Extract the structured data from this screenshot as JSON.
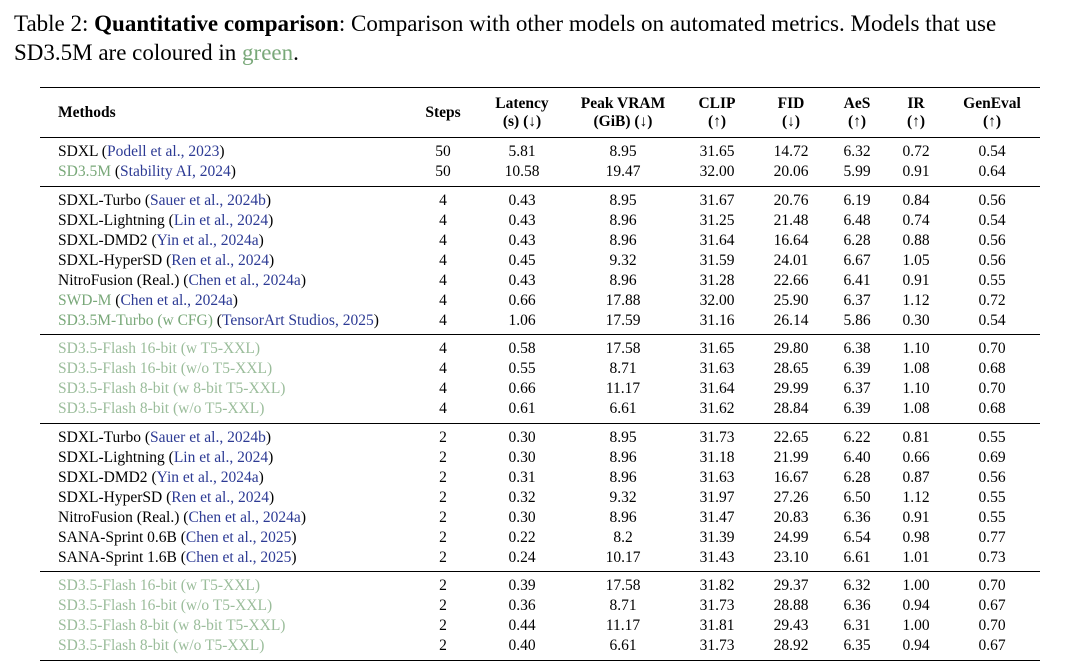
{
  "caption": {
    "label": "Table 2: ",
    "bold_title": "Quantitative comparison",
    "body": ": Comparison with other models on automated metrics. Models that use SD3.5M are coloured in ",
    "green_word": "green",
    "tail": "."
  },
  "colors": {
    "black": "#000000",
    "green": "#79a879",
    "lightgreen": "#9bbd9b",
    "citation": "#2c3a94"
  },
  "table": {
    "columns": [
      {
        "key": "method",
        "l1": "Methods",
        "l2": ""
      },
      {
        "key": "steps",
        "l1": "Steps",
        "l2": ""
      },
      {
        "key": "latency",
        "l1": "Latency",
        "l2": "(s) (↓)"
      },
      {
        "key": "vram",
        "l1": "Peak VRAM",
        "l2": "(GiB) (↓)"
      },
      {
        "key": "clip",
        "l1": "CLIP",
        "l2": "(↑)"
      },
      {
        "key": "fid",
        "l1": "FID",
        "l2": "(↓)"
      },
      {
        "key": "aes",
        "l1": "AeS",
        "l2": "(↑)"
      },
      {
        "key": "ir",
        "l1": "IR",
        "l2": "(↑)"
      },
      {
        "key": "geneval",
        "l1": "GenEval",
        "l2": "(↑)"
      }
    ],
    "groups": [
      {
        "rows": [
          {
            "method": "SDXL",
            "cite": "Podell et al., 2023",
            "tone": "black",
            "cells": [
              "50",
              "5.81",
              "8.95",
              "31.65",
              "14.72",
              "6.32",
              "0.72",
              "0.54"
            ]
          },
          {
            "method": "SD3.5M",
            "cite": "Stability AI, 2024",
            "tone": "green",
            "cells": [
              "50",
              "10.58",
              "19.47",
              "32.00",
              "20.06",
              "5.99",
              "0.91",
              "0.64"
            ]
          }
        ]
      },
      {
        "rows": [
          {
            "method": "SDXL-Turbo",
            "cite": "Sauer et al., 2024b",
            "tone": "black",
            "cells": [
              "4",
              "0.43",
              "8.95",
              "31.67",
              "20.76",
              "6.19",
              "0.84",
              "0.56"
            ]
          },
          {
            "method": "SDXL-Lightning",
            "cite": "Lin et al., 2024",
            "tone": "black",
            "cells": [
              "4",
              "0.43",
              "8.96",
              "31.25",
              "21.48",
              "6.48",
              "0.74",
              "0.54"
            ]
          },
          {
            "method": "SDXL-DMD2",
            "cite": "Yin et al., 2024a",
            "tone": "black",
            "cells": [
              "4",
              "0.43",
              "8.96",
              "31.64",
              "16.64",
              "6.28",
              "0.88",
              "0.56"
            ]
          },
          {
            "method": "SDXL-HyperSD",
            "cite": "Ren et al., 2024",
            "tone": "black",
            "cells": [
              "4",
              "0.45",
              "9.32",
              "31.59",
              "24.01",
              "6.67",
              "1.05",
              "0.56"
            ]
          },
          {
            "method": "NitroFusion (Real.)",
            "cite": "Chen et al., 2024a",
            "tone": "black",
            "cells": [
              "4",
              "0.43",
              "8.96",
              "31.28",
              "22.66",
              "6.41",
              "0.91",
              "0.55"
            ]
          },
          {
            "method": "SWD-M",
            "cite": "Chen et al., 2024a",
            "tone": "green",
            "cells": [
              "4",
              "0.66",
              "17.88",
              "32.00",
              "25.90",
              "6.37",
              "1.12",
              "0.72"
            ]
          },
          {
            "method": "SD3.5M-Turbo (w CFG)",
            "cite": "TensorArt Studios, 2025",
            "tone": "green",
            "cells": [
              "4",
              "1.06",
              "17.59",
              "31.16",
              "26.14",
              "5.86",
              "0.30",
              "0.54"
            ]
          }
        ]
      },
      {
        "rows": [
          {
            "method": "SD3.5-Flash 16-bit (w T5-XXL)",
            "tone": "lightgreen",
            "cells": [
              "4",
              "0.58",
              "17.58",
              "31.65",
              "29.80",
              "6.38",
              "1.10",
              "0.70"
            ]
          },
          {
            "method": "SD3.5-Flash 16-bit (w/o T5-XXL)",
            "tone": "lightgreen",
            "cells": [
              "4",
              "0.55",
              "8.71",
              "31.63",
              "28.65",
              "6.39",
              "1.08",
              "0.68"
            ]
          },
          {
            "method": "SD3.5-Flash 8-bit (w 8-bit T5-XXL)",
            "tone": "lightgreen",
            "cells": [
              "4",
              "0.66",
              "11.17",
              "31.64",
              "29.99",
              "6.37",
              "1.10",
              "0.70"
            ]
          },
          {
            "method": "SD3.5-Flash 8-bit (w/o T5-XXL)",
            "tone": "lightgreen",
            "cells": [
              "4",
              "0.61",
              "6.61",
              "31.62",
              "28.84",
              "6.39",
              "1.08",
              "0.68"
            ]
          }
        ]
      },
      {
        "rows": [
          {
            "method": "SDXL-Turbo",
            "cite": "Sauer et al., 2024b",
            "tone": "black",
            "cells": [
              "2",
              "0.30",
              "8.95",
              "31.73",
              "22.65",
              "6.22",
              "0.81",
              "0.55"
            ]
          },
          {
            "method": "SDXL-Lightning",
            "cite": "Lin et al., 2024",
            "tone": "black",
            "cells": [
              "2",
              "0.30",
              "8.96",
              "31.18",
              "21.99",
              "6.40",
              "0.66",
              "0.69"
            ]
          },
          {
            "method": "SDXL-DMD2",
            "cite": "Yin et al., 2024a",
            "tone": "black",
            "cells": [
              "2",
              "0.31",
              "8.96",
              "31.63",
              "16.67",
              "6.28",
              "0.87",
              "0.56"
            ]
          },
          {
            "method": "SDXL-HyperSD",
            "cite": "Ren et al., 2024",
            "tone": "black",
            "cells": [
              "2",
              "0.32",
              "9.32",
              "31.97",
              "27.26",
              "6.50",
              "1.12",
              "0.55"
            ]
          },
          {
            "method": "NitroFusion (Real.)",
            "cite": "Chen et al., 2024a",
            "tone": "black",
            "cells": [
              "2",
              "0.30",
              "8.96",
              "31.47",
              "20.83",
              "6.36",
              "0.91",
              "0.55"
            ]
          },
          {
            "method": "SANA-Sprint 0.6B",
            "cite": "Chen et al., 2025",
            "tone": "black",
            "cells": [
              "2",
              "0.22",
              "8.2",
              "31.39",
              "24.99",
              "6.54",
              "0.98",
              "0.77"
            ]
          },
          {
            "method": "SANA-Sprint 1.6B",
            "cite": "Chen et al., 2025",
            "tone": "black",
            "cells": [
              "2",
              "0.24",
              "10.17",
              "31.43",
              "23.10",
              "6.61",
              "1.01",
              "0.73"
            ]
          }
        ]
      },
      {
        "rows": [
          {
            "method": "SD3.5-Flash 16-bit (w T5-XXL)",
            "tone": "lightgreen",
            "cells": [
              "2",
              "0.39",
              "17.58",
              "31.82",
              "29.37",
              "6.32",
              "1.00",
              "0.70"
            ]
          },
          {
            "method": "SD3.5-Flash 16-bit (w/o T5-XXL)",
            "tone": "lightgreen",
            "cells": [
              "2",
              "0.36",
              "8.71",
              "31.73",
              "28.88",
              "6.36",
              "0.94",
              "0.67"
            ]
          },
          {
            "method": "SD3.5-Flash 8-bit (w 8-bit T5-XXL)",
            "tone": "lightgreen",
            "cells": [
              "2",
              "0.44",
              "11.17",
              "31.81",
              "29.43",
              "6.31",
              "1.00",
              "0.70"
            ]
          },
          {
            "method": "SD3.5-Flash 8-bit (w/o T5-XXL)",
            "tone": "lightgreen",
            "cells": [
              "2",
              "0.40",
              "6.61",
              "31.73",
              "28.92",
              "6.35",
              "0.94",
              "0.67"
            ]
          }
        ]
      }
    ]
  }
}
